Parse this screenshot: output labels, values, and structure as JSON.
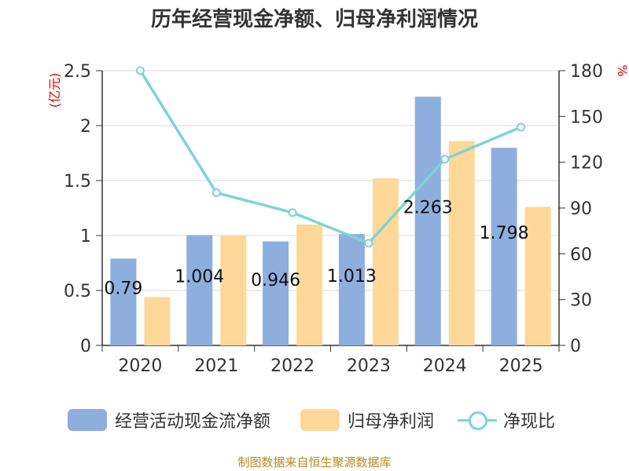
{
  "title": "历年经营现金净额、归母净利润情况",
  "source": "制图数据来自恒生聚源数据库",
  "chart_data": {
    "type": "bar",
    "categories": [
      "2020",
      "2021",
      "2022",
      "2023",
      "2024",
      "2025"
    ],
    "series": [
      {
        "name": "经营活动现金流净额",
        "type": "bar",
        "axis": "left",
        "color": "#8eaedd",
        "values": [
          0.79,
          1.004,
          0.946,
          1.013,
          2.263,
          1.798
        ],
        "labels": [
          "0.79",
          "1.004",
          "0.946",
          "1.013",
          "2.263",
          "1.798"
        ]
      },
      {
        "name": "归母净利润",
        "type": "bar",
        "axis": "left",
        "color": "#fdd898",
        "values": [
          0.44,
          1.0,
          1.1,
          1.52,
          1.86,
          1.26
        ]
      },
      {
        "name": "净现比",
        "type": "line",
        "axis": "right",
        "color": "#7fd3d5",
        "values": [
          180,
          100,
          87,
          67,
          122,
          143
        ]
      }
    ],
    "left_axis": {
      "label": "(亿元)",
      "min": 0,
      "max": 2.5,
      "ticks": [
        "0",
        "0.5",
        "1",
        "1.5",
        "2",
        "2.5"
      ]
    },
    "right_axis": {
      "label": "%",
      "min": 0,
      "max": 180,
      "ticks": [
        "0",
        "30",
        "60",
        "90",
        "120",
        "150",
        "180"
      ]
    },
    "grid": true,
    "legend_position": "bottom"
  },
  "legend": [
    {
      "label": "经营活动现金流净额",
      "color": "#8eaedd",
      "kind": "bar"
    },
    {
      "label": "归母净利润",
      "color": "#fdd898",
      "kind": "bar"
    },
    {
      "label": "净现比",
      "color": "#7fd3d5",
      "kind": "line"
    }
  ]
}
